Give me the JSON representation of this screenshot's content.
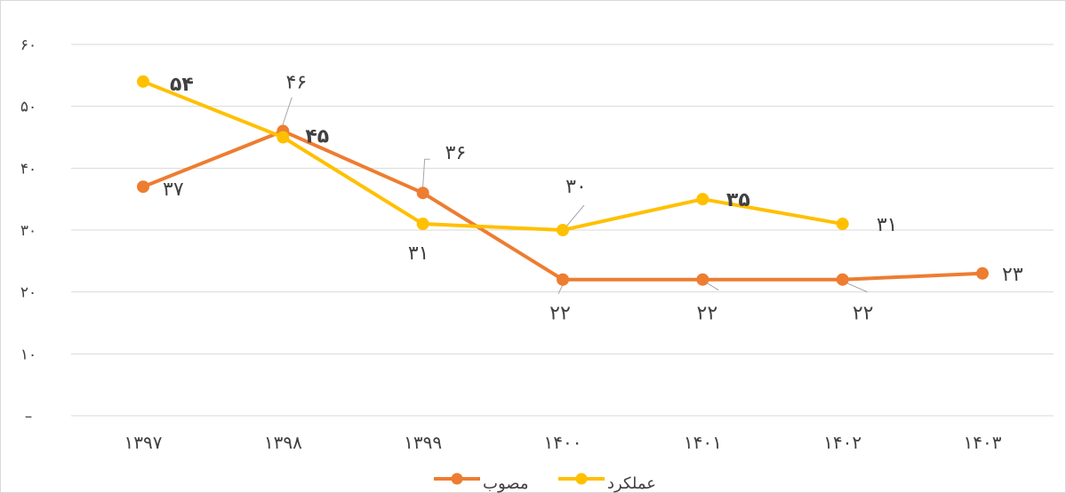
{
  "chart_data": {
    "type": "line",
    "title": "",
    "xlabel": "",
    "ylabel": "",
    "categories": [
      "۱۳۹۷",
      "۱۳۹۸",
      "۱۳۹۹",
      "۱۴۰۰",
      "۱۴۰۱",
      "۱۴۰۲",
      "۱۴۰۳"
    ],
    "ylim": [
      0,
      60
    ],
    "yticks": [
      0,
      10,
      20,
      30,
      40,
      50,
      60
    ],
    "ytick_labels": [
      "–",
      "۱۰",
      "۲۰",
      "۳۰",
      "۴۰",
      "۵۰",
      "۶۰"
    ],
    "grid": true,
    "legend_position": "bottom",
    "series": [
      {
        "name": "مصوب",
        "color": "#ED7D31",
        "values": [
          37,
          46,
          36,
          22,
          22,
          22,
          23
        ],
        "labels": [
          "۳۷",
          "۴۶",
          "۳۶",
          "۲۲",
          "۲۲",
          "۲۲",
          "۲۳"
        ]
      },
      {
        "name": "عملکرد",
        "color": "#FFC000",
        "values": [
          54,
          45,
          31,
          30,
          35,
          31,
          null
        ],
        "labels": [
          "۵۴",
          "۴۵",
          "۳۱",
          "۳۰",
          "۳۵",
          "۳۱",
          null
        ]
      }
    ]
  }
}
